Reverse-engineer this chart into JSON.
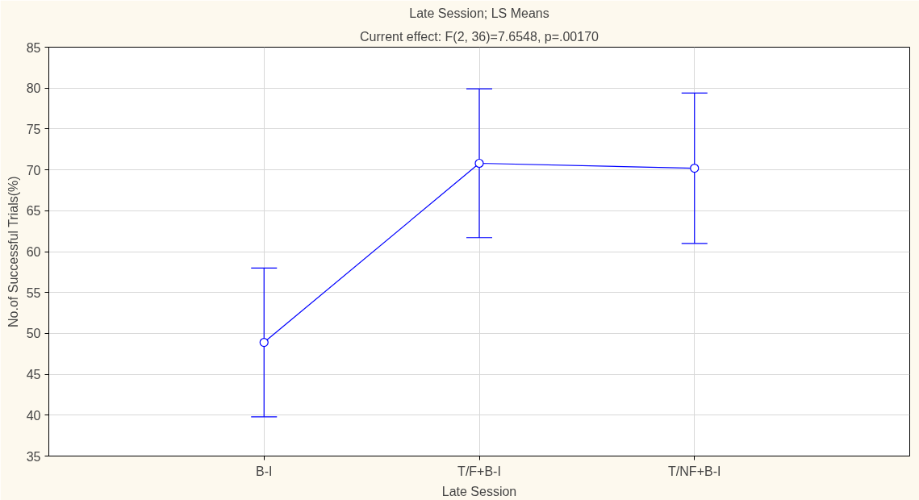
{
  "chart_data": {
    "type": "line",
    "title": "Late Session; LS Means",
    "subtitle": "Current effect: F(2, 36)=7.6548, p=.00170",
    "xlabel": "Late Session",
    "ylabel": "No.of Successful Trials(%)",
    "categories": [
      "B-I",
      "T/F+B-I",
      "T/NF+B-I"
    ],
    "series": [
      {
        "color": "#0000ff",
        "values": [
          48.9,
          70.8,
          70.2
        ],
        "errors": [
          9.1,
          9.1,
          9.2
        ]
      }
    ],
    "ylim": [
      35,
      85
    ],
    "yticks": [
      35,
      40,
      45,
      50,
      55,
      60,
      65,
      70,
      75,
      80,
      85
    ],
    "grid": true,
    "marker": "circle",
    "line_style": "solid"
  }
}
